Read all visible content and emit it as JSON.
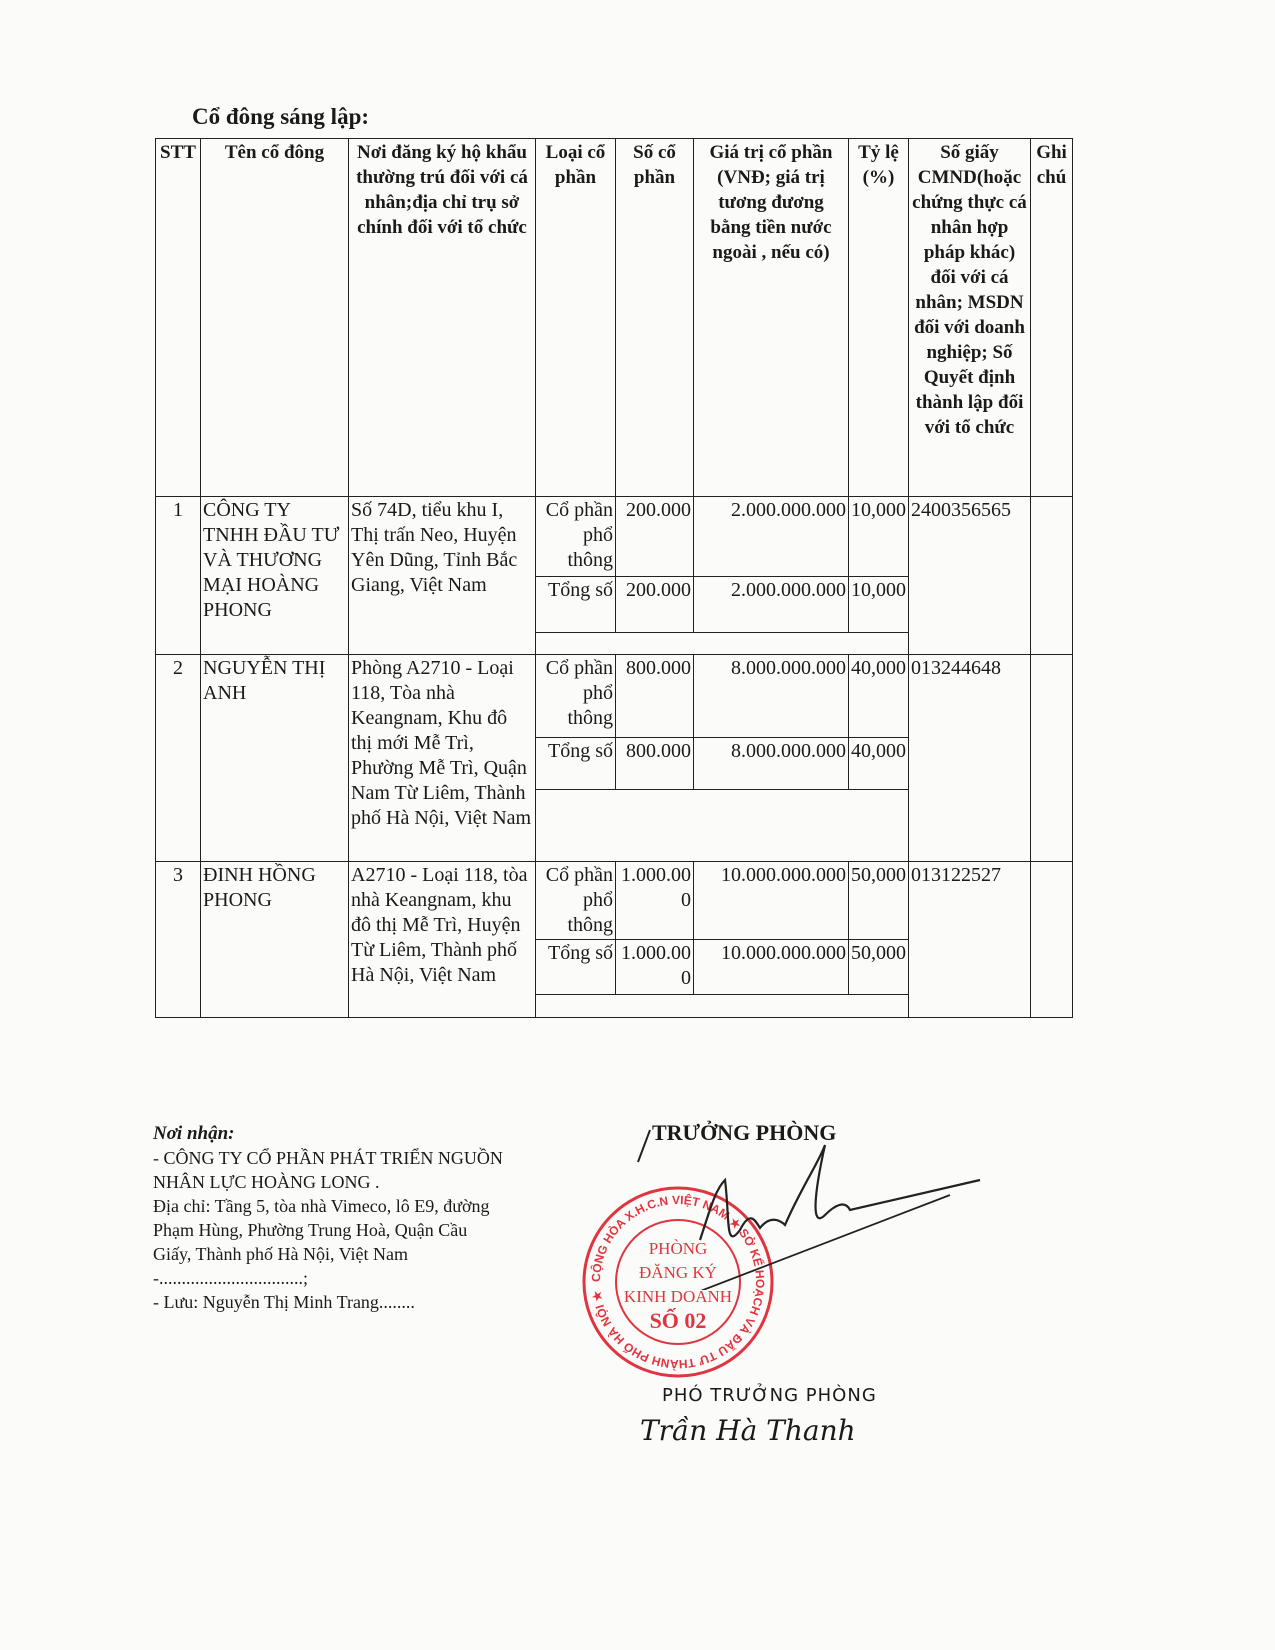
{
  "title": "Cổ đông sáng lập:",
  "table": {
    "headers": [
      "STT",
      "Tên cổ đông",
      "Nơi đăng ký hộ khẩu thường trú đối với cá nhân;địa chỉ trụ sở chính đối với tổ chức",
      "Loại cổ phần",
      "Số cổ phần",
      "Giá trị cổ phần (VNĐ; giá trị tương đương bằng tiền nước ngoài , nếu có)",
      "Tỷ lệ (%)",
      "Số giấy CMND(hoặc chứng thực cá nhân hợp pháp khác) đối với cá nhân; MSDN đối với doanh nghiệp; Số Quyết định thành lập đối với tổ chức",
      "Ghi chú"
    ],
    "rows": [
      {
        "stt": "1",
        "name": "CÔNG TY TNHH ĐẦU TƯ VÀ THƯƠNG MẠI HOÀNG PHONG",
        "address": "Số 74D, tiểu khu I, Thị trấn Neo, Huyện Yên Dũng, Tỉnh Bắc Giang, Việt Nam",
        "type": "Cổ phần phổ thông",
        "shares": "200.000",
        "value": "2.000.000.000",
        "ratio": "10,000",
        "total_label": "Tổng số",
        "total_shares": "200.000",
        "total_value": "2.000.000.000",
        "total_ratio": "10,000",
        "id": "2400356565",
        "note": ""
      },
      {
        "stt": "2",
        "name": "NGUYỄN THỊ ANH",
        "address": "Phòng A2710 - Loại 118, Tòa nhà Keangnam, Khu đô thị mới Mễ Trì, Phường Mễ Trì, Quận Nam Từ Liêm, Thành phố Hà Nội, Việt Nam",
        "type": "Cổ phần phổ thông",
        "shares": "800.000",
        "value": "8.000.000.000",
        "ratio": "40,000",
        "total_label": "Tổng số",
        "total_shares": "800.000",
        "total_value": "8.000.000.000",
        "total_ratio": "40,000",
        "id": "013244648",
        "note": ""
      },
      {
        "stt": "3",
        "name": "ĐINH HỒNG PHONG",
        "address": "A2710 - Loại 118, tòa nhà Keangnam, khu đô thị Mễ Trì, Huyện Từ Liêm, Thành phố Hà Nội, Việt Nam",
        "type": "Cổ phần phổ thông",
        "shares": "1.000.000",
        "value": "10.000.000.000",
        "ratio": "50,000",
        "total_label": "Tổng số",
        "total_shares": "1.000.000",
        "total_value": "10.000.000.000",
        "total_ratio": "50,000",
        "id": "013122527",
        "note": ""
      }
    ]
  },
  "recipients": {
    "heading": "Nơi nhận:",
    "lines": [
      "- CÔNG TY CỔ PHẦN PHÁT TRIỂN NGUỒN NHÂN LỰC HOÀNG LONG .",
      "Địa chỉ: Tầng 5, tòa nhà Vimeco, lô E9, đường Phạm Hùng, Phường Trung Hoà, Quận Cầu Giấy, Thành phố Hà Nội, Việt Nam",
      "-................................;",
      "- Lưu: Nguyễn Thị Minh Trang........"
    ]
  },
  "signature": {
    "heading": "TRƯỞNG PHÒNG",
    "deputy": "PHÓ TRƯỞNG PHÒNG",
    "name": "Trần Hà Thanh"
  },
  "stamp": {
    "outer": "CỘNG HÒA X.H.C.N VIỆT NAM ★ SỞ KẾ HOẠCH VÀ ĐẦU TƯ THÀNH PHỐ HÀ NỘI ★",
    "lines": [
      "PHÒNG",
      "ĐĂNG KÝ",
      "KINH DOANH",
      "SỐ 02"
    ],
    "color": "#e0353f"
  }
}
